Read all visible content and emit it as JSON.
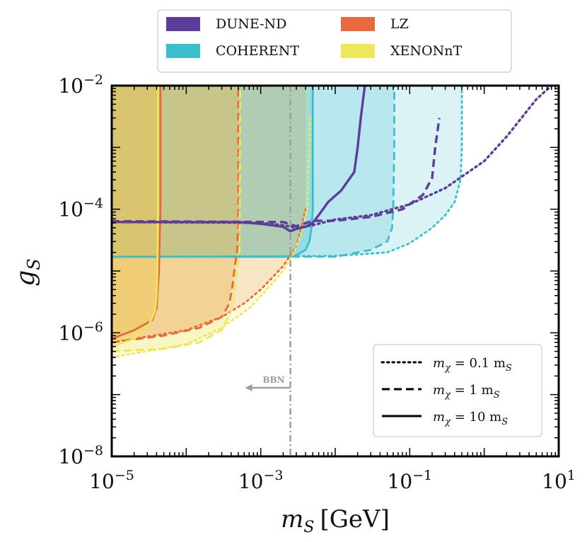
{
  "chart_data": {
    "type": "line",
    "xlabel": "m",
    "xlabel_sub": "S",
    "xlabel_unit": "[GeV]",
    "ylabel": "g",
    "ylabel_sub": "S",
    "xscale": "log",
    "yscale": "log",
    "xlim": [
      1e-05,
      10
    ],
    "ylim": [
      1e-08,
      0.01
    ],
    "x_ticks": [
      {
        "base": "10",
        "exp": "−5"
      },
      {
        "base": "10",
        "exp": "−3"
      },
      {
        "base": "10",
        "exp": "−1"
      },
      {
        "base": "10",
        "exp": "1"
      }
    ],
    "y_ticks": [
      {
        "base": "10",
        "exp": "−8"
      },
      {
        "base": "10",
        "exp": "−6"
      },
      {
        "base": "10",
        "exp": "−4"
      },
      {
        "base": "10",
        "exp": "−2"
      }
    ],
    "colors": {
      "DUNE-ND": "#5e3c99",
      "COHERENT": "#3bbfcd",
      "LZ": "#e8693d",
      "XENONnT": "#ece85a",
      "BBN": "#9e9e9e"
    },
    "legend_experiments": [
      "DUNE-ND",
      "COHERENT",
      "LZ",
      "XENONnT"
    ],
    "legend_styles": [
      {
        "style": "dotted",
        "label": "m",
        "sub": "χ",
        "rhs": " = 0.1 m",
        "rhs_sub": "S"
      },
      {
        "style": "dashed",
        "label": "m",
        "sub": "χ",
        "rhs": " = 1 m",
        "rhs_sub": "S"
      },
      {
        "style": "solid",
        "label": "m",
        "sub": "χ",
        "rhs": " = 10 m",
        "rhs_sub": "S"
      }
    ],
    "bbn": {
      "label": "BBN",
      "x": 0.0025
    },
    "series": [
      {
        "name": "COHERENT",
        "style": "dotted",
        "points": [
          [
            1e-05,
            1.7e-05
          ],
          [
            0.01,
            1.75e-05
          ],
          [
            0.05,
            2e-05
          ],
          [
            0.1,
            2.8e-05
          ],
          [
            0.2,
            5e-05
          ],
          [
            0.3,
            8e-05
          ],
          [
            0.4,
            0.00013
          ],
          [
            0.48,
            0.0003
          ],
          [
            0.5,
            0.001
          ],
          [
            0.5,
            0.01
          ]
        ]
      },
      {
        "name": "COHERENT",
        "style": "dashed",
        "points": [
          [
            1e-05,
            1.7e-05
          ],
          [
            0.01,
            1.7e-05
          ],
          [
            0.03,
            2.2e-05
          ],
          [
            0.05,
            3e-05
          ],
          [
            0.058,
            5e-05
          ],
          [
            0.06,
            0.0001
          ],
          [
            0.062,
            0.001
          ],
          [
            0.062,
            0.01
          ]
        ]
      },
      {
        "name": "COHERENT",
        "style": "solid",
        "points": [
          [
            1e-05,
            1.7e-05
          ],
          [
            0.002,
            1.7e-05
          ],
          [
            0.003,
            1.8e-05
          ],
          [
            0.004,
            2.2e-05
          ],
          [
            0.0045,
            3e-05
          ],
          [
            0.0048,
            5e-05
          ],
          [
            0.005,
            0.0001
          ],
          [
            0.005,
            0.01
          ]
        ]
      },
      {
        "name": "DUNE-ND",
        "style": "dotted",
        "points": [
          [
            1e-05,
            6.2e-05
          ],
          [
            0.001,
            6e-05
          ],
          [
            0.002,
            5.5e-05
          ],
          [
            0.003,
            5e-05
          ],
          [
            0.005,
            5.5e-05
          ],
          [
            0.01,
            6.8e-05
          ],
          [
            0.03,
            8e-05
          ],
          [
            0.1,
            0.00012
          ],
          [
            0.3,
            0.00022
          ],
          [
            1,
            0.0006
          ],
          [
            2,
            0.0015
          ],
          [
            5,
            0.006
          ],
          [
            8,
            0.01
          ]
        ]
      },
      {
        "name": "DUNE-ND",
        "style": "dashed",
        "points": [
          [
            1e-05,
            6.4e-05
          ],
          [
            0.002,
            6.2e-05
          ],
          [
            0.003,
            5.3e-05
          ],
          [
            0.005,
            6.5e-05
          ],
          [
            0.01,
            6.5e-05
          ],
          [
            0.03,
            7.5e-05
          ],
          [
            0.08,
            0.0001
          ],
          [
            0.15,
            0.00017
          ],
          [
            0.2,
            0.00032
          ],
          [
            0.22,
            0.001
          ],
          [
            0.25,
            0.003
          ]
        ]
      },
      {
        "name": "DUNE-ND",
        "style": "solid",
        "points": [
          [
            1e-05,
            6.2e-05
          ],
          [
            0.0005,
            6.2e-05
          ],
          [
            0.001,
            5.8e-05
          ],
          [
            0.002,
            5.2e-05
          ],
          [
            0.0025,
            4.4e-05
          ],
          [
            0.003,
            4.8e-05
          ],
          [
            0.004,
            5.2e-05
          ],
          [
            0.005,
            6e-05
          ],
          [
            0.006,
            8e-05
          ],
          [
            0.008,
            0.00013
          ],
          [
            0.012,
            0.0002
          ],
          [
            0.018,
            0.0004
          ],
          [
            0.02,
            0.001
          ],
          [
            0.022,
            0.003
          ],
          [
            0.025,
            0.01
          ]
        ]
      },
      {
        "name": "LZ",
        "style": "dotted",
        "points": [
          [
            1e-05,
            7e-07
          ],
          [
            0.0001,
            1.1e-06
          ],
          [
            0.0003,
            1.8e-06
          ],
          [
            0.0006,
            3e-06
          ],
          [
            0.001,
            5e-06
          ],
          [
            0.002,
            1.2e-05
          ],
          [
            0.003,
            2.5e-05
          ],
          [
            0.0035,
            5e-05
          ],
          [
            0.004,
            0.0001
          ]
        ]
      },
      {
        "name": "LZ",
        "style": "dashed",
        "points": [
          [
            1e-05,
            7e-07
          ],
          [
            5e-05,
            9e-07
          ],
          [
            0.00015,
            1.2e-06
          ],
          [
            0.0003,
            1.8e-06
          ],
          [
            0.00038,
            3e-06
          ],
          [
            0.00042,
            6e-06
          ],
          [
            0.00045,
            1.2e-05
          ],
          [
            0.00048,
            2e-05
          ],
          [
            0.0005,
            6e-05
          ],
          [
            0.0005,
            0.01
          ]
        ]
      },
      {
        "name": "LZ",
        "style": "solid",
        "points": [
          [
            1e-05,
            8e-07
          ],
          [
            2e-05,
            1.1e-06
          ],
          [
            3.5e-05,
            1.6e-06
          ],
          [
            4e-05,
            2.5e-06
          ],
          [
            4.3e-05,
            1e-05
          ],
          [
            4.5e-05,
            0.0001
          ],
          [
            4.5e-05,
            0.01
          ]
        ]
      },
      {
        "name": "XENONnT",
        "style": "dotted",
        "points": [
          [
            1e-05,
            4e-07
          ],
          [
            0.0001,
            6.5e-07
          ],
          [
            0.0003,
            1.2e-06
          ],
          [
            0.0007,
            2.5e-06
          ],
          [
            0.0012,
            5e-06
          ],
          [
            0.002,
            1e-05
          ],
          [
            0.0028,
            2e-05
          ],
          [
            0.0035,
            4e-05
          ],
          [
            0.0042,
            0.0001
          ],
          [
            0.0045,
            0.001
          ],
          [
            0.0046,
            0.003
          ]
        ]
      },
      {
        "name": "XENONnT",
        "style": "dashed",
        "points": [
          [
            1e-05,
            5e-07
          ],
          [
            5e-05,
            5.5e-07
          ],
          [
            0.00015,
            7e-07
          ],
          [
            0.0003,
            1.1e-06
          ],
          [
            0.00042,
            2.5e-06
          ],
          [
            0.00048,
            1e-05
          ],
          [
            0.00052,
            2e-05
          ],
          [
            0.00053,
            0.01
          ]
        ]
      },
      {
        "name": "XENONnT",
        "style": "solid",
        "points": [
          [
            1e-05,
            6e-07
          ],
          [
            2e-05,
            8e-07
          ],
          [
            3.2e-05,
            1.4e-06
          ],
          [
            3.8e-05,
            2.2e-06
          ],
          [
            4e-05,
            4e-06
          ],
          [
            4.1e-05,
            1e-05
          ],
          [
            4.2e-05,
            0.0001
          ],
          [
            4.2e-05,
            0.01
          ]
        ]
      }
    ]
  }
}
